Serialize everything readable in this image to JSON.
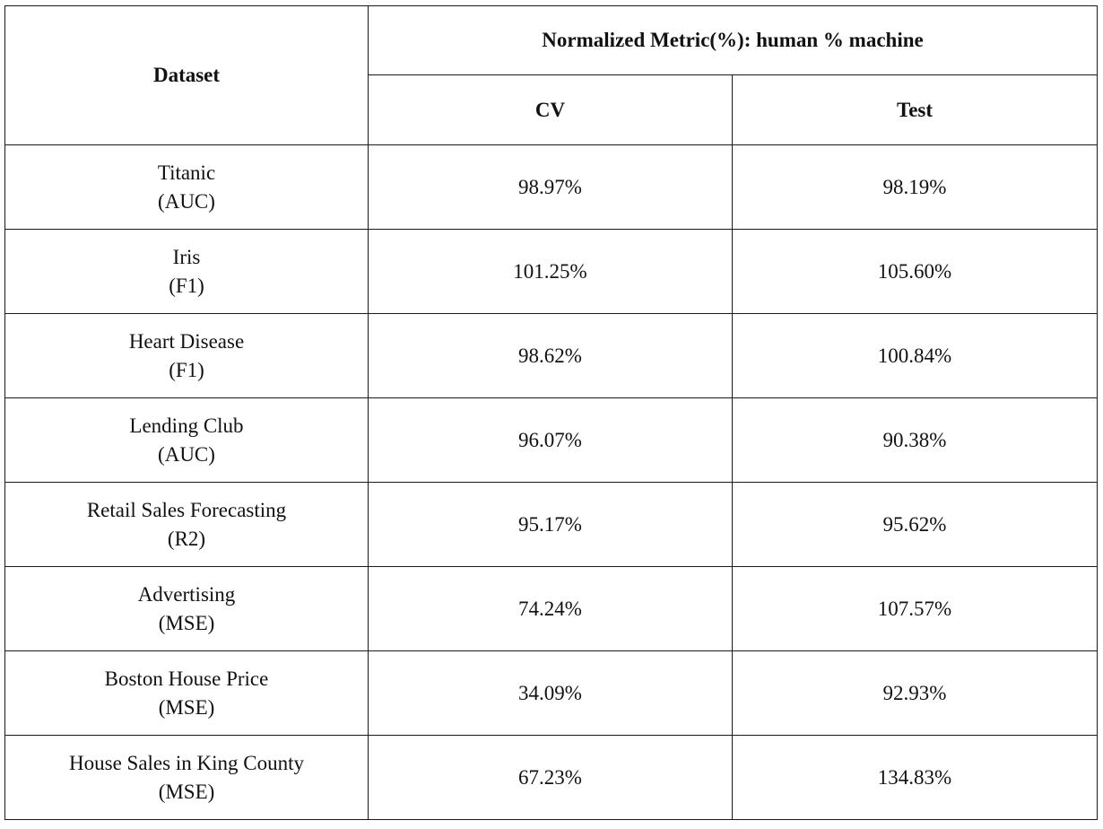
{
  "table": {
    "headers": {
      "dataset": "Dataset",
      "group": "Normalized Metric(%): human % machine",
      "cv": "CV",
      "test": "Test"
    },
    "rows": [
      {
        "name": "Titanic",
        "metric": "(AUC)",
        "cv": "98.97%",
        "test": "98.19%"
      },
      {
        "name": "Iris",
        "metric": "(F1)",
        "cv": "101.25%",
        "test": "105.60%"
      },
      {
        "name": "Heart Disease",
        "metric": "(F1)",
        "cv": "98.62%",
        "test": "100.84%"
      },
      {
        "name": "Lending Club",
        "metric": "(AUC)",
        "cv": "96.07%",
        "test": "90.38%"
      },
      {
        "name": "Retail Sales Forecasting",
        "metric": "(R2)",
        "cv": "95.17%",
        "test": "95.62%"
      },
      {
        "name": "Advertising",
        "metric": "(MSE)",
        "cv": "74.24%",
        "test": "107.57%"
      },
      {
        "name": "Boston House Price",
        "metric": "(MSE)",
        "cv": "34.09%",
        "test": "92.93%"
      },
      {
        "name": "House Sales in King County",
        "metric": "(MSE)",
        "cv": "67.23%",
        "test": "134.83%"
      }
    ]
  }
}
